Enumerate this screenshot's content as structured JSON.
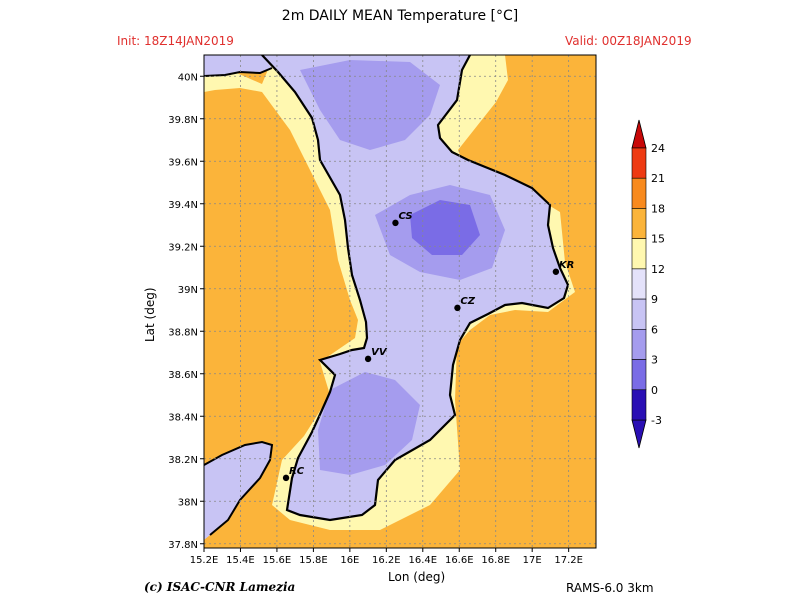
{
  "header": {
    "title": "2m DAILY MEAN Temperature [°C]",
    "init": "Init: 18Z14JAN2019",
    "valid": "Valid: 00Z18JAN2019"
  },
  "footer": {
    "credit": "(c) ISAC-CNR Lamezia",
    "model": "RAMS-6.0 3km"
  },
  "axes": {
    "xlabel": "Lon (deg)",
    "ylabel": "Lat (deg)",
    "xticks": [
      "15.2E",
      "15.4E",
      "15.6E",
      "15.8E",
      "16E",
      "16.2E",
      "16.4E",
      "16.6E",
      "16.8E",
      "17E",
      "17.2E"
    ],
    "yticks": [
      "37.8N",
      "38N",
      "38.2N",
      "38.4N",
      "38.6N",
      "38.8N",
      "39N",
      "39.2N",
      "39.4N",
      "39.6N",
      "39.8N",
      "40N"
    ]
  },
  "colorbar": {
    "labels": [
      "-3",
      "0",
      "3",
      "6",
      "9",
      "12",
      "15",
      "18",
      "21",
      "24"
    ],
    "colors": [
      "#2a0fb4",
      "#7a6ce6",
      "#a59cee",
      "#c8c4f4",
      "#e4e2fa",
      "#fff8b0",
      "#fbb43a",
      "#f88a1e",
      "#ee3a12",
      "#c80808"
    ]
  },
  "cities": [
    {
      "code": "CS",
      "lon": 16.25,
      "lat": 39.31
    },
    {
      "code": "KR",
      "lon": 17.13,
      "lat": 39.08
    },
    {
      "code": "CZ",
      "lon": 16.59,
      "lat": 38.91
    },
    {
      "code": "VV",
      "lon": 16.1,
      "lat": 38.67
    },
    {
      "code": "RC",
      "lon": 15.65,
      "lat": 38.11
    }
  ],
  "map": {
    "lon_range": [
      15.2,
      17.35
    ],
    "lat_range": [
      37.78,
      40.1
    ],
    "sea_color": "#fbb43a",
    "land_color": "#c8c4f4"
  }
}
